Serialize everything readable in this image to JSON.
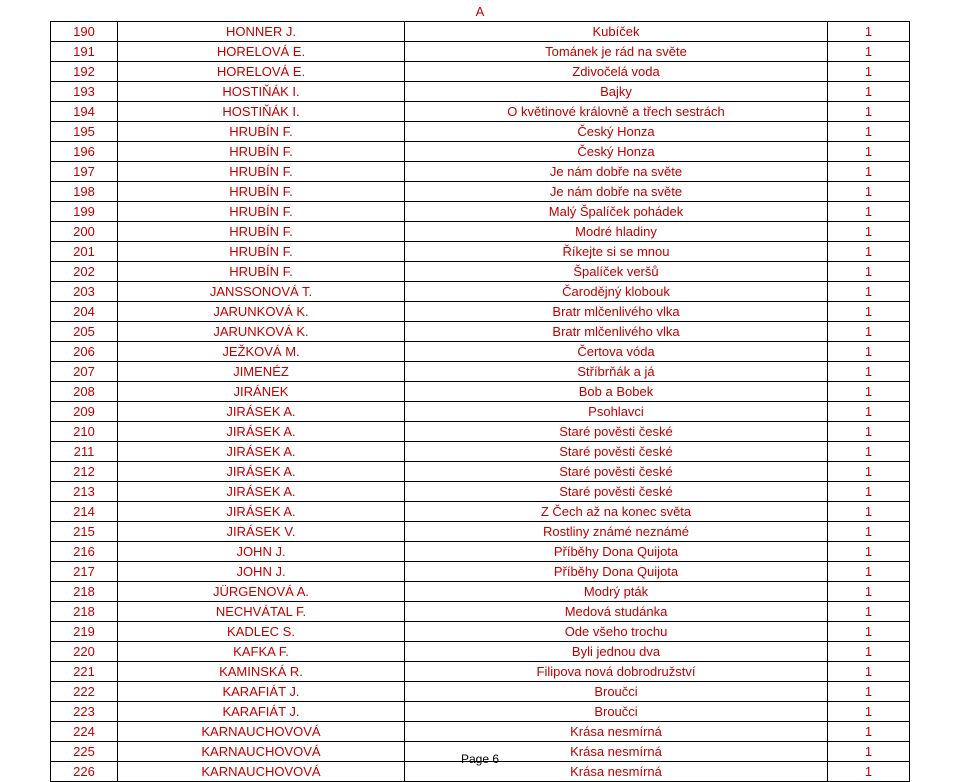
{
  "page_header": "A",
  "footer": "Page 6",
  "columns": [
    "num",
    "author",
    "title",
    "qty"
  ],
  "colors": {
    "text": "#c00000",
    "border": "#000000",
    "background": "#ffffff"
  },
  "col_align": {
    "num": "center",
    "author": "center",
    "title": "center",
    "qty": "center"
  },
  "rows": [
    {
      "num": "190",
      "author": "HONNER J.",
      "title": "Kubíček",
      "qty": "1"
    },
    {
      "num": "191",
      "author": "HORELOVÁ E.",
      "title": "Tománek je rád na světe",
      "qty": "1"
    },
    {
      "num": "192",
      "author": "HORELOVÁ E.",
      "title": "Zdivočelá voda",
      "qty": "1"
    },
    {
      "num": "193",
      "author": "HOSTIŇÁK I.",
      "title": "Bajky",
      "qty": "1"
    },
    {
      "num": "194",
      "author": "HOSTIŇÁK I.",
      "title": "O květinové královně a třech sestrách",
      "qty": "1"
    },
    {
      "num": "195",
      "author": "HRUBÍN F.",
      "title": "Český Honza",
      "qty": "1"
    },
    {
      "num": "196",
      "author": "HRUBÍN F.",
      "title": "Český Honza",
      "qty": "1"
    },
    {
      "num": "197",
      "author": "HRUBÍN F.",
      "title": "Je nám dobře na světe",
      "qty": "1"
    },
    {
      "num": "198",
      "author": "HRUBÍN F.",
      "title": "Je nám dobře na světe",
      "qty": "1"
    },
    {
      "num": "199",
      "author": "HRUBÍN F.",
      "title": "Malý Špalíček pohádek",
      "qty": "1"
    },
    {
      "num": "200",
      "author": "HRUBÍN F.",
      "title": "Modré hladiny",
      "qty": "1"
    },
    {
      "num": "201",
      "author": "HRUBÍN F.",
      "title": "Říkejte si se mnou",
      "qty": "1"
    },
    {
      "num": "202",
      "author": "HRUBÍN F.",
      "title": "Špalíček veršů",
      "qty": "1"
    },
    {
      "num": "203",
      "author": "JANSSONOVÁ T.",
      "title": "Čarodějný klobouk",
      "qty": "1"
    },
    {
      "num": "204",
      "author": "JARUNKOVÁ K.",
      "title": "Bratr mlčenlivého vlka",
      "qty": "1"
    },
    {
      "num": "205",
      "author": "JARUNKOVÁ K.",
      "title": "Bratr mlčenlivého vlka",
      "qty": "1"
    },
    {
      "num": "206",
      "author": "JEŽKOVÁ M.",
      "title": "Čertova vóda",
      "qty": "1"
    },
    {
      "num": "207",
      "author": "JIMENÉZ",
      "title": "Stříbrňák a já",
      "qty": "1"
    },
    {
      "num": "208",
      "author": "JIRÁNEK",
      "title": "Bob a Bobek",
      "qty": "1"
    },
    {
      "num": "209",
      "author": "JIRÁSEK A.",
      "title": "Psohlavci",
      "qty": "1"
    },
    {
      "num": "210",
      "author": "JIRÁSEK A.",
      "title": "Staré pověsti české",
      "qty": "1"
    },
    {
      "num": "211",
      "author": "JIRÁSEK A.",
      "title": "Staré pověsti české",
      "qty": "1"
    },
    {
      "num": "212",
      "author": "JIRÁSEK A.",
      "title": "Staré pověsti české",
      "qty": "1"
    },
    {
      "num": "213",
      "author": "JIRÁSEK A.",
      "title": "Staré pověsti české",
      "qty": "1"
    },
    {
      "num": "214",
      "author": "JIRÁSEK A.",
      "title": "Z Čech až na konec světa",
      "qty": "1"
    },
    {
      "num": "215",
      "author": "JIRÁSEK V.",
      "title": "Rostliny známé neznámé",
      "qty": "1"
    },
    {
      "num": "216",
      "author": "JOHN J.",
      "title": "Příběhy Dona Quijota",
      "qty": "1"
    },
    {
      "num": "217",
      "author": "JOHN J.",
      "title": "Příběhy Dona Quijota",
      "qty": "1"
    },
    {
      "num": "218",
      "author": "JÜRGENOVÁ A.",
      "title": "Modrý pták",
      "qty": "1"
    },
    {
      "num": "218",
      "author": "NECHVÁTAL F.",
      "title": "Medová studánka",
      "qty": "1"
    },
    {
      "num": "219",
      "author": "KADLEC S.",
      "title": "Ode všeho trochu",
      "qty": "1"
    },
    {
      "num": "220",
      "author": "KAFKA F.",
      "title": "Byli jednou dva",
      "qty": "1"
    },
    {
      "num": "221",
      "author": "KAMINSKÁ R.",
      "title": "Filipova nová dobrodružství",
      "qty": "1"
    },
    {
      "num": "222",
      "author": "KARAFIÁT J.",
      "title": "Broučci",
      "qty": "1"
    },
    {
      "num": "223",
      "author": "KARAFIÁT J.",
      "title": "Broučci",
      "qty": "1"
    },
    {
      "num": "224",
      "author": "KARNAUCHOVOVÁ",
      "title": "Krása nesmírná",
      "qty": "1"
    },
    {
      "num": "225",
      "author": "KARNAUCHOVOVÁ",
      "title": "Krása nesmírná",
      "qty": "1"
    },
    {
      "num": "226",
      "author": "KARNAUCHOVOVÁ",
      "title": "Krása nesmírná",
      "qty": "1"
    }
  ]
}
